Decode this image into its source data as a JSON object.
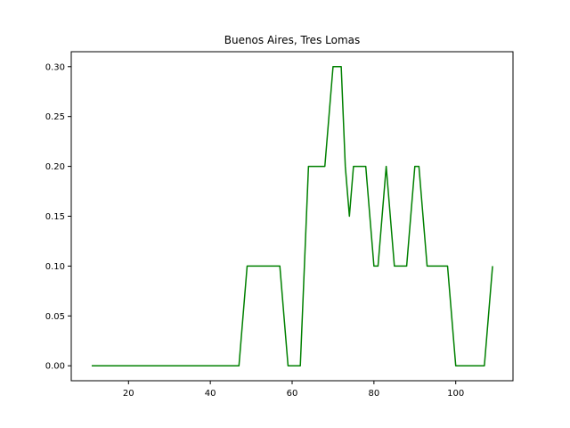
{
  "chart_data": {
    "type": "line",
    "title": "Buenos Aires, Tres Lomas",
    "xlabel": "",
    "ylabel": "",
    "xlim": [
      6,
      114
    ],
    "ylim": [
      -0.015,
      0.315
    ],
    "xticks": [
      20,
      40,
      60,
      80,
      100
    ],
    "yticks": [
      0.0,
      0.05,
      0.1,
      0.15,
      0.2,
      0.25,
      0.3
    ],
    "ytick_labels": [
      "0.00",
      "0.05",
      "0.10",
      "0.15",
      "0.20",
      "0.25",
      "0.30"
    ],
    "grid": false,
    "legend": "none",
    "colors": {
      "line": "#008000",
      "axes": "#000000",
      "background": "#ffffff"
    },
    "series": [
      {
        "x": [
          11,
          47,
          49,
          57,
          59,
          62,
          64,
          68,
          70,
          72,
          73,
          74,
          75,
          78,
          80,
          81,
          83,
          85,
          88,
          90,
          91,
          93,
          98,
          100,
          107,
          109
        ],
        "y": [
          0.0,
          0.0,
          0.1,
          0.1,
          0.0,
          0.0,
          0.2,
          0.2,
          0.3,
          0.3,
          0.2,
          0.15,
          0.2,
          0.2,
          0.1,
          0.1,
          0.2,
          0.1,
          0.1,
          0.2,
          0.2,
          0.1,
          0.1,
          0.0,
          0.0,
          0.1
        ]
      }
    ]
  }
}
